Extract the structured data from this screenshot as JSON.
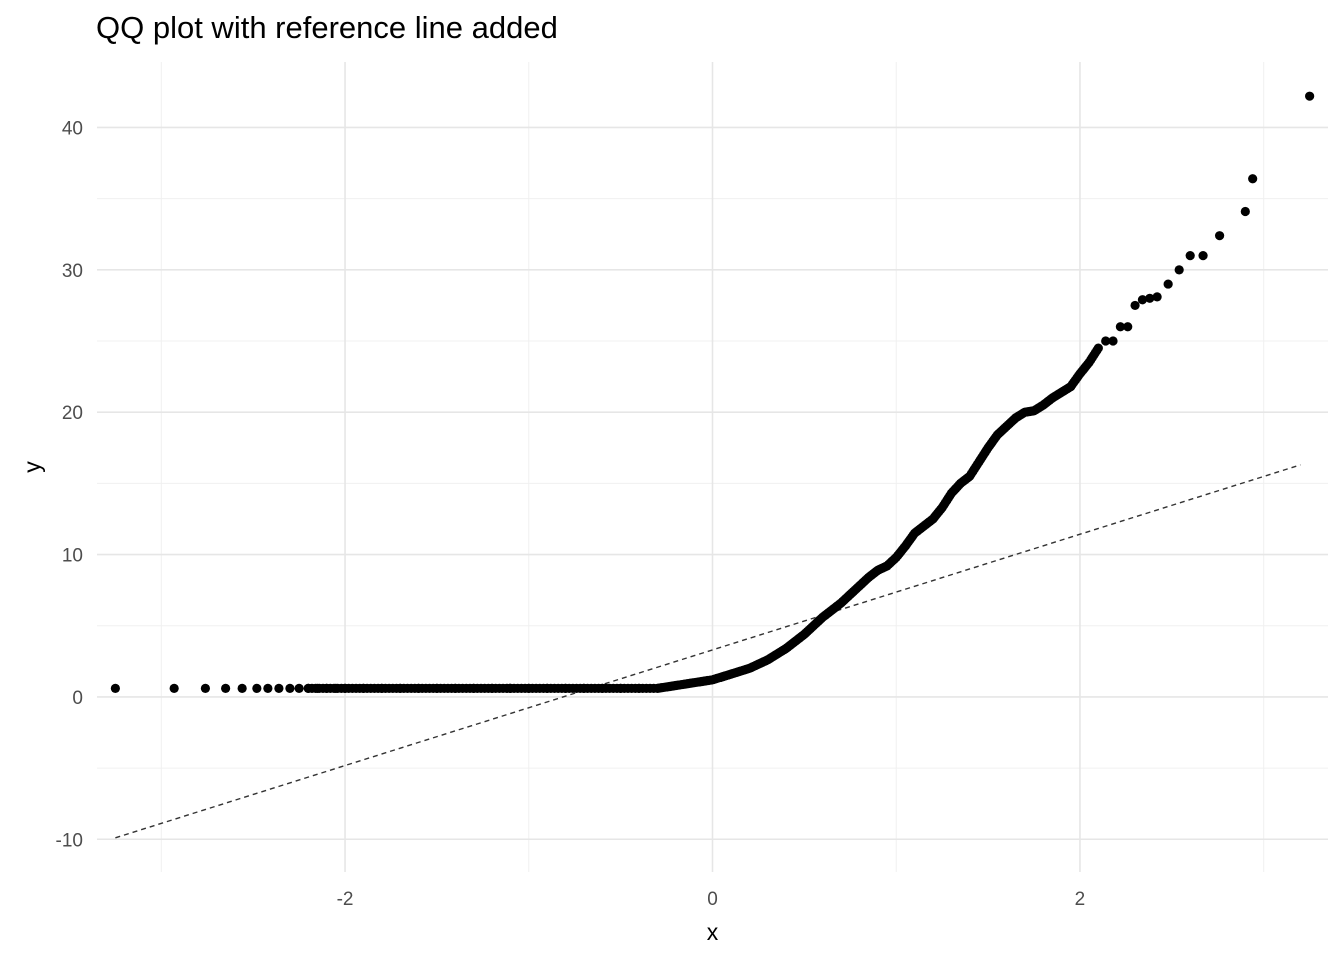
{
  "chart_data": {
    "type": "scatter",
    "title": "QQ plot with reference line added",
    "xlabel": "x",
    "ylabel": "y",
    "xlim": [
      -3.35,
      3.35
    ],
    "ylim": [
      -12.3,
      44.6
    ],
    "x_ticks": [
      -2,
      0,
      2
    ],
    "x_tick_labels": [
      "-2",
      "0",
      "2"
    ],
    "y_ticks": [
      -10,
      0,
      10,
      20,
      30,
      40
    ],
    "y_tick_labels": [
      "-10",
      "0",
      "10",
      "20",
      "30",
      "40"
    ],
    "grid": true,
    "legend": "none",
    "point_color": "#000000",
    "reference_line": {
      "style": "dashed",
      "color": "#333333",
      "x": [
        -3.25,
        3.2
      ],
      "y": [
        -9.9,
        16.3
      ]
    },
    "series": [
      {
        "values": [
          {
            "x": -3.25,
            "y": 0.6
          },
          {
            "x": -2.93,
            "y": 0.6
          },
          {
            "x": -2.76,
            "y": 0.6
          },
          {
            "x": -2.65,
            "y": 0.6
          },
          {
            "x": -2.56,
            "y": 0.6
          },
          {
            "x": -2.48,
            "y": 0.6
          },
          {
            "x": -2.42,
            "y": 0.6
          },
          {
            "x": -2.36,
            "y": 0.6
          },
          {
            "x": -2.3,
            "y": 0.6
          },
          {
            "x": -2.25,
            "y": 0.6
          },
          {
            "x": -2.2,
            "y": 0.6
          },
          {
            "x": -2.15,
            "y": 0.6
          },
          {
            "x": -2.1,
            "y": 0.6
          },
          {
            "x": -2.05,
            "y": 0.6
          },
          {
            "x": -2.0,
            "y": 0.6
          },
          {
            "x": -1.9,
            "y": 0.6
          },
          {
            "x": -1.8,
            "y": 0.6
          },
          {
            "x": -1.7,
            "y": 0.6
          },
          {
            "x": -1.6,
            "y": 0.6
          },
          {
            "x": -1.5,
            "y": 0.6
          },
          {
            "x": -1.4,
            "y": 0.6
          },
          {
            "x": -1.3,
            "y": 0.6
          },
          {
            "x": -1.2,
            "y": 0.6
          },
          {
            "x": -1.1,
            "y": 0.6
          },
          {
            "x": -1.0,
            "y": 0.6
          },
          {
            "x": -0.9,
            "y": 0.6
          },
          {
            "x": -0.8,
            "y": 0.6
          },
          {
            "x": -0.7,
            "y": 0.6
          },
          {
            "x": -0.6,
            "y": 0.6
          },
          {
            "x": -0.5,
            "y": 0.6
          },
          {
            "x": -0.4,
            "y": 0.6
          },
          {
            "x": -0.3,
            "y": 0.6
          },
          {
            "x": -0.25,
            "y": 0.7
          },
          {
            "x": -0.2,
            "y": 0.8
          },
          {
            "x": -0.15,
            "y": 0.9
          },
          {
            "x": -0.1,
            "y": 1.0
          },
          {
            "x": -0.05,
            "y": 1.1
          },
          {
            "x": 0.0,
            "y": 1.2
          },
          {
            "x": 0.05,
            "y": 1.4
          },
          {
            "x": 0.1,
            "y": 1.6
          },
          {
            "x": 0.15,
            "y": 1.8
          },
          {
            "x": 0.2,
            "y": 2.0
          },
          {
            "x": 0.25,
            "y": 2.3
          },
          {
            "x": 0.3,
            "y": 2.6
          },
          {
            "x": 0.35,
            "y": 3.0
          },
          {
            "x": 0.4,
            "y": 3.4
          },
          {
            "x": 0.45,
            "y": 3.9
          },
          {
            "x": 0.5,
            "y": 4.4
          },
          {
            "x": 0.55,
            "y": 5.0
          },
          {
            "x": 0.6,
            "y": 5.6
          },
          {
            "x": 0.65,
            "y": 6.1
          },
          {
            "x": 0.7,
            "y": 6.6
          },
          {
            "x": 0.75,
            "y": 7.2
          },
          {
            "x": 0.8,
            "y": 7.8
          },
          {
            "x": 0.85,
            "y": 8.4
          },
          {
            "x": 0.9,
            "y": 8.9
          },
          {
            "x": 0.95,
            "y": 9.2
          },
          {
            "x": 1.0,
            "y": 9.8
          },
          {
            "x": 1.05,
            "y": 10.6
          },
          {
            "x": 1.1,
            "y": 11.5
          },
          {
            "x": 1.15,
            "y": 12.0
          },
          {
            "x": 1.2,
            "y": 12.5
          },
          {
            "x": 1.25,
            "y": 13.3
          },
          {
            "x": 1.3,
            "y": 14.3
          },
          {
            "x": 1.35,
            "y": 15.0
          },
          {
            "x": 1.4,
            "y": 15.5
          },
          {
            "x": 1.45,
            "y": 16.5
          },
          {
            "x": 1.5,
            "y": 17.5
          },
          {
            "x": 1.55,
            "y": 18.4
          },
          {
            "x": 1.6,
            "y": 19.0
          },
          {
            "x": 1.65,
            "y": 19.6
          },
          {
            "x": 1.7,
            "y": 20.0
          },
          {
            "x": 1.75,
            "y": 20.1
          },
          {
            "x": 1.8,
            "y": 20.5
          },
          {
            "x": 1.85,
            "y": 21.0
          },
          {
            "x": 1.9,
            "y": 21.4
          },
          {
            "x": 1.95,
            "y": 21.8
          },
          {
            "x": 2.0,
            "y": 22.7
          },
          {
            "x": 2.05,
            "y": 23.5
          },
          {
            "x": 2.1,
            "y": 24.5
          },
          {
            "x": 2.14,
            "y": 25.0
          },
          {
            "x": 2.18,
            "y": 25.0
          },
          {
            "x": 2.22,
            "y": 26.0
          },
          {
            "x": 2.26,
            "y": 26.0
          },
          {
            "x": 2.3,
            "y": 27.5
          },
          {
            "x": 2.34,
            "y": 27.9
          },
          {
            "x": 2.38,
            "y": 28.0
          },
          {
            "x": 2.42,
            "y": 28.1
          },
          {
            "x": 2.48,
            "y": 29.0
          },
          {
            "x": 2.54,
            "y": 30.0
          },
          {
            "x": 2.6,
            "y": 31.0
          },
          {
            "x": 2.67,
            "y": 31.0
          },
          {
            "x": 2.76,
            "y": 32.4
          },
          {
            "x": 2.9,
            "y": 34.1
          },
          {
            "x": 2.94,
            "y": 36.4
          },
          {
            "x": 3.25,
            "y": 42.2
          }
        ]
      }
    ]
  }
}
